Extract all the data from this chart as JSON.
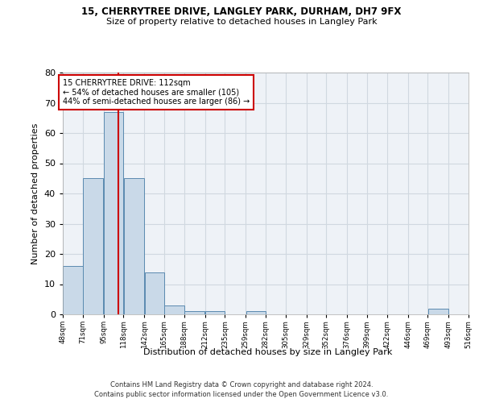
{
  "title1": "15, CHERRYTREE DRIVE, LANGLEY PARK, DURHAM, DH7 9FX",
  "title2": "Size of property relative to detached houses in Langley Park",
  "xlabel": "Distribution of detached houses by size in Langley Park",
  "ylabel": "Number of detached properties",
  "footnote1": "Contains HM Land Registry data © Crown copyright and database right 2024.",
  "footnote2": "Contains public sector information licensed under the Open Government Licence v3.0.",
  "property_label": "15 CHERRYTREE DRIVE: 112sqm",
  "annotation_line1": "← 54% of detached houses are smaller (105)",
  "annotation_line2": "44% of semi-detached houses are larger (86) →",
  "bin_edges": [
    48,
    71,
    95,
    118,
    142,
    165,
    188,
    212,
    235,
    259,
    282,
    305,
    329,
    352,
    376,
    399,
    422,
    446,
    469,
    493,
    516
  ],
  "bar_heights": [
    16,
    45,
    67,
    45,
    14,
    3,
    1,
    1,
    0,
    1,
    0,
    0,
    0,
    0,
    0,
    0,
    0,
    0,
    2,
    0
  ],
  "bar_color": "#c9d9e8",
  "bar_edge_color": "#5a8ab0",
  "grid_color": "#d0d8e0",
  "vline_color": "#cc0000",
  "vline_x": 112,
  "annotation_box_color": "#cc0000",
  "ylim": [
    0,
    80
  ],
  "yticks": [
    0,
    10,
    20,
    30,
    40,
    50,
    60,
    70,
    80
  ],
  "bg_color": "#eef2f7"
}
